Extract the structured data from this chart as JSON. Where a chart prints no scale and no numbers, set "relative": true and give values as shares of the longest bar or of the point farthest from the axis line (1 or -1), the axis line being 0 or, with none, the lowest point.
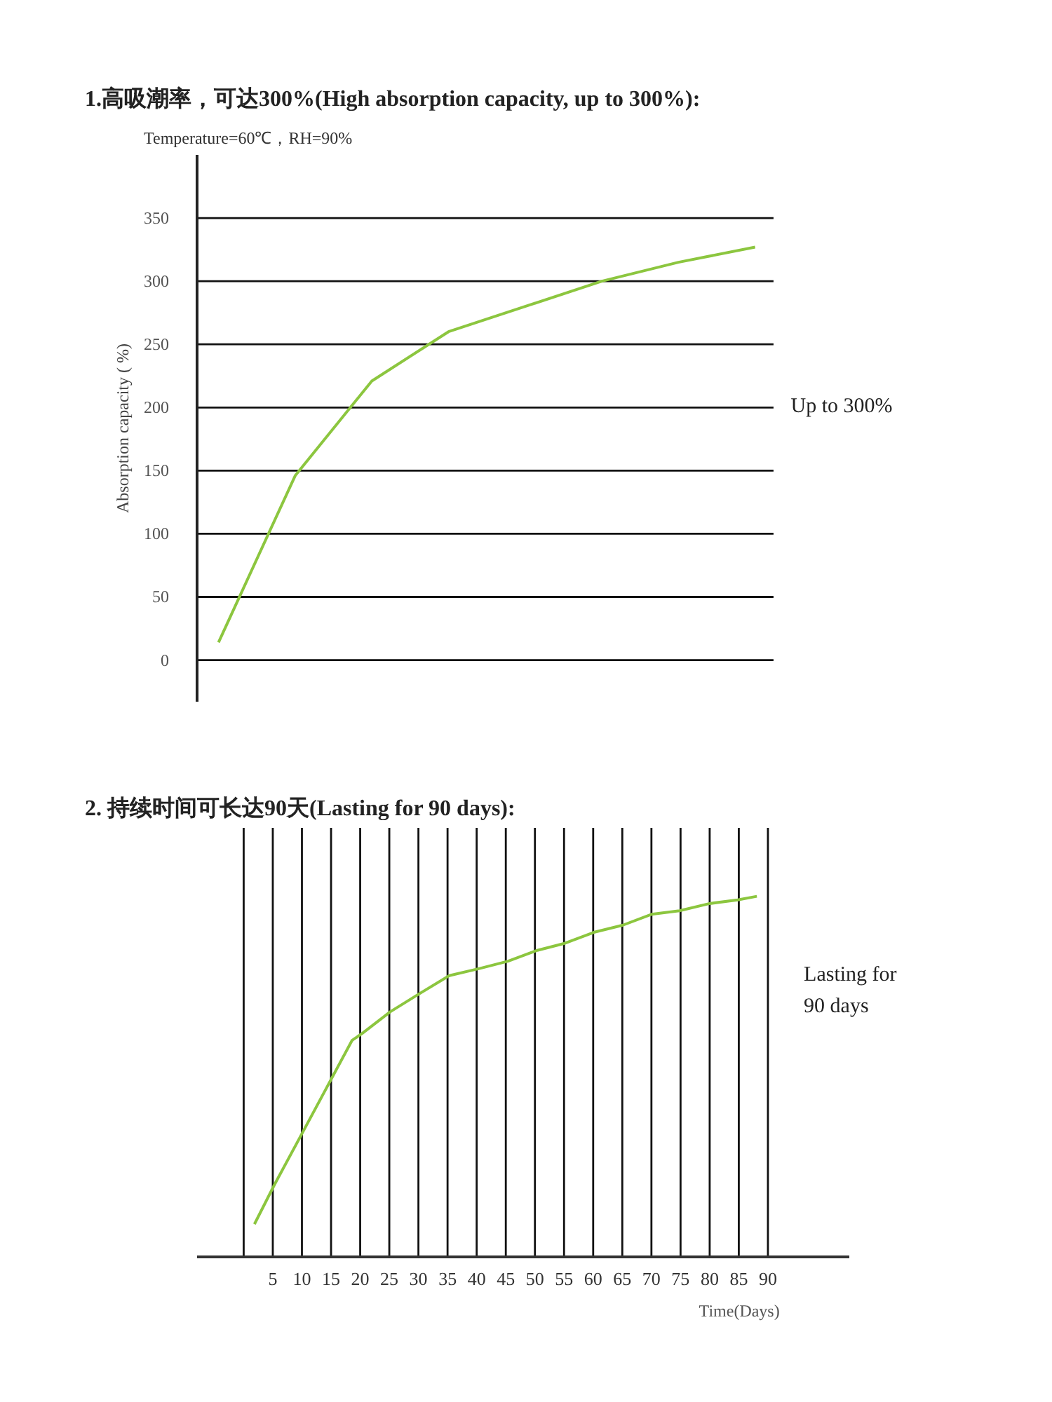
{
  "chart_data": [
    {
      "type": "line",
      "title": "1.高吸潮率，可达300%(High absorption capacity, up to 300%):",
      "subtitle": "Temperature=60℃，RH=90%",
      "ylabel": "Absorption capacity ( %)",
      "categories": [
        null,
        null,
        null,
        null,
        null,
        null,
        null,
        null
      ],
      "series": [
        {
          "color": "#8cc63f",
          "values": [
            14,
            146,
            221,
            260,
            280,
            300,
            315,
            327
          ]
        }
      ],
      "ylim": [
        -33,
        400
      ],
      "yticks": [
        0,
        50,
        100,
        150,
        200,
        250,
        300,
        350
      ],
      "grid": "y",
      "tick_labels": "y",
      "marker": "none",
      "line_style": "solid",
      "annotations": [
        "Up to 300%"
      ]
    },
    {
      "type": "line",
      "title": "2.  持续时间可长达90天(Lasting for 90 days):",
      "xlabel": "Time(Days)",
      "relative": true,
      "series": [
        {
          "color": "#8cc63f",
          "x": [
            1.85,
            5.3,
            10.3,
            18.6,
            20.4,
            25.2,
            30.2,
            35.3,
            40.6,
            45.4,
            50.4,
            55.2,
            60.1,
            65.1,
            70.0,
            74.8,
            80.0,
            84.8,
            88.1
          ],
          "values": [
            0.09,
            0.2,
            0.35,
            0.6,
            0.62,
            0.68,
            0.73,
            0.78,
            0.8,
            0.82,
            0.85,
            0.87,
            0.9,
            0.92,
            0.95,
            0.96,
            0.98,
            0.99,
            1
          ]
        }
      ],
      "xlim": [
        -8,
        104
      ],
      "xticks": [
        {
          "value": 0,
          "label": null
        },
        5,
        10,
        15,
        20,
        25,
        30,
        35,
        40,
        45,
        50,
        55,
        60,
        65,
        70,
        75,
        80,
        85,
        90
      ],
      "grid": "x",
      "tick_labels": "x",
      "marker": "none",
      "line_style": "solid",
      "annotations": [
        "Lasting for 90 days"
      ]
    }
  ]
}
